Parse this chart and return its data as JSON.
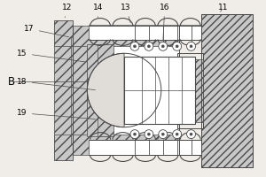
{
  "bg_color": "#f0ede8",
  "line_color": "#4a4a4a",
  "hatch_fc": "#c8c8c8",
  "white": "#ffffff",
  "figsize": [
    3.0,
    2.0
  ],
  "dpi": 100,
  "label_fontsize": 6.5
}
